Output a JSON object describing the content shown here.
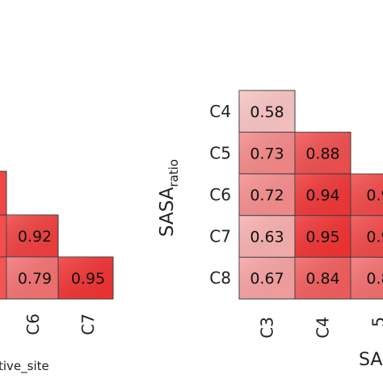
{
  "chart_data": [
    {
      "type": "heatmap",
      "title": "",
      "xlabel_visible": "tive_site",
      "ylabel": "",
      "x_categories_visible": [
        "C6",
        "C7"
      ],
      "cells": [
        {
          "x": "C6",
          "y": "row3",
          "value": 0.92
        },
        {
          "x": "C7",
          "y": "row4",
          "value": 0.95
        },
        {
          "x": "C6",
          "y": "row4",
          "value": 0.79
        }
      ],
      "color_scale": {
        "low": "#fbd0d0",
        "high": "#f02a2a"
      },
      "grid": false,
      "legend": "none"
    },
    {
      "type": "heatmap",
      "title": "",
      "ylabel": "SASA",
      "ylabel_subscript": "ratio",
      "xlabel_visible": "SA",
      "x_categories_visible": [
        "C3",
        "C4",
        "5"
      ],
      "y_categories": [
        "C4",
        "C5",
        "C6",
        "C7",
        "C8"
      ],
      "cells": [
        {
          "x": "C3",
          "y": "C4",
          "value": 0.58
        },
        {
          "x": "C3",
          "y": "C5",
          "value": 0.73
        },
        {
          "x": "C4",
          "y": "C5",
          "value": 0.88
        },
        {
          "x": "C3",
          "y": "C6",
          "value": 0.72
        },
        {
          "x": "C4",
          "y": "C6",
          "value": 0.94
        },
        {
          "x": "C5",
          "y": "C6",
          "value": 0.9,
          "label_visible": "0.9"
        },
        {
          "x": "C3",
          "y": "C7",
          "value": 0.63
        },
        {
          "x": "C4",
          "y": "C7",
          "value": 0.95
        },
        {
          "x": "C5",
          "y": "C7",
          "value": 0.9,
          "label_visible": "0.9"
        },
        {
          "x": "C3",
          "y": "C8",
          "value": 0.67
        },
        {
          "x": "C4",
          "y": "C8",
          "value": 0.84
        },
        {
          "x": "C5",
          "y": "C8",
          "value": 0.8,
          "label_visible": "0.8"
        }
      ],
      "color_scale": {
        "low": "#fbd0d0",
        "high": "#f02a2a"
      },
      "grid": false,
      "legend": "none"
    }
  ]
}
